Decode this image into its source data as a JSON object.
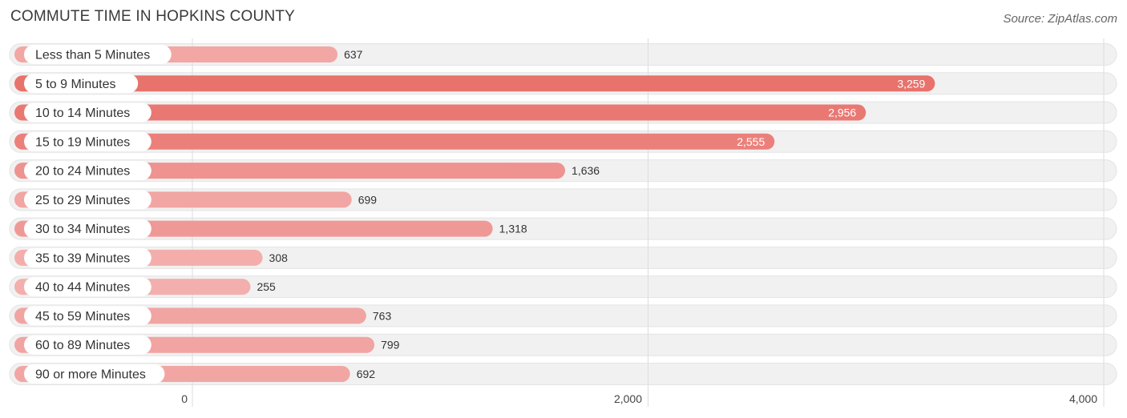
{
  "chart_data": {
    "type": "bar",
    "orientation": "horizontal",
    "title": "COMMUTE TIME IN HOPKINS COUNTY",
    "source": "Source: ZipAtlas.com",
    "categories": [
      "Less than 5 Minutes",
      "5 to 9 Minutes",
      "10 to 14 Minutes",
      "15 to 19 Minutes",
      "20 to 24 Minutes",
      "25 to 29 Minutes",
      "30 to 34 Minutes",
      "35 to 39 Minutes",
      "40 to 44 Minutes",
      "45 to 59 Minutes",
      "60 to 89 Minutes",
      "90 or more Minutes"
    ],
    "values": [
      637,
      3259,
      2956,
      2555,
      1636,
      699,
      1318,
      308,
      255,
      763,
      799,
      692
    ],
    "value_labels": [
      "637",
      "3,259",
      "2,956",
      "2,555",
      "1,636",
      "699",
      "1,318",
      "308",
      "255",
      "763",
      "799",
      "692"
    ],
    "xlim": [
      0,
      4000
    ],
    "xticks": [
      0,
      2000,
      4000
    ],
    "xtick_labels": [
      "0",
      "2,000",
      "4,000"
    ],
    "grid": true,
    "colors": {
      "bar_light": "#f2aaa8",
      "bar_dark": "#e8756f",
      "track": "#f1f1f1",
      "grid": "#dddddd"
    }
  }
}
